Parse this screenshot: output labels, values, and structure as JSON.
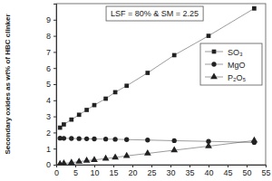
{
  "chart_data": {
    "type": "line",
    "ylabel": "Secondary oxides as wt% of HBC clinker",
    "annotation": "LSF = 80% & SM = 2.25",
    "x": [
      1,
      2,
      4,
      6,
      8,
      10,
      13,
      15.5,
      18.5,
      24,
      31,
      40,
      52
    ],
    "series": [
      {
        "name": "SO₃",
        "color": "#222222",
        "marker": "square",
        "values": [
          2.3,
          2.5,
          2.8,
          3.1,
          3.4,
          3.7,
          4.1,
          4.5,
          4.9,
          5.7,
          6.8,
          8.0,
          9.7
        ]
      },
      {
        "name": "MgO",
        "color": "#222222",
        "marker": "circle",
        "values": [
          1.65,
          1.64,
          1.63,
          1.62,
          1.61,
          1.6,
          1.59,
          1.58,
          1.56,
          1.53,
          1.49,
          1.45,
          1.38
        ]
      },
      {
        "name": "P₂O₅",
        "color": "#222222",
        "marker": "triangle",
        "values": [
          0.05,
          0.08,
          0.13,
          0.19,
          0.25,
          0.3,
          0.38,
          0.45,
          0.55,
          0.7,
          0.9,
          1.15,
          1.5
        ]
      }
    ],
    "xlim": [
      0,
      55
    ],
    "xticks": [
      0,
      5,
      10,
      15,
      20,
      25,
      30,
      35,
      40,
      45,
      50,
      55
    ],
    "ylim": [
      0,
      10
    ],
    "yticks": [
      0,
      1,
      2,
      3,
      4,
      5,
      6,
      7,
      8,
      9
    ],
    "grid": false,
    "legend": "upper right"
  }
}
